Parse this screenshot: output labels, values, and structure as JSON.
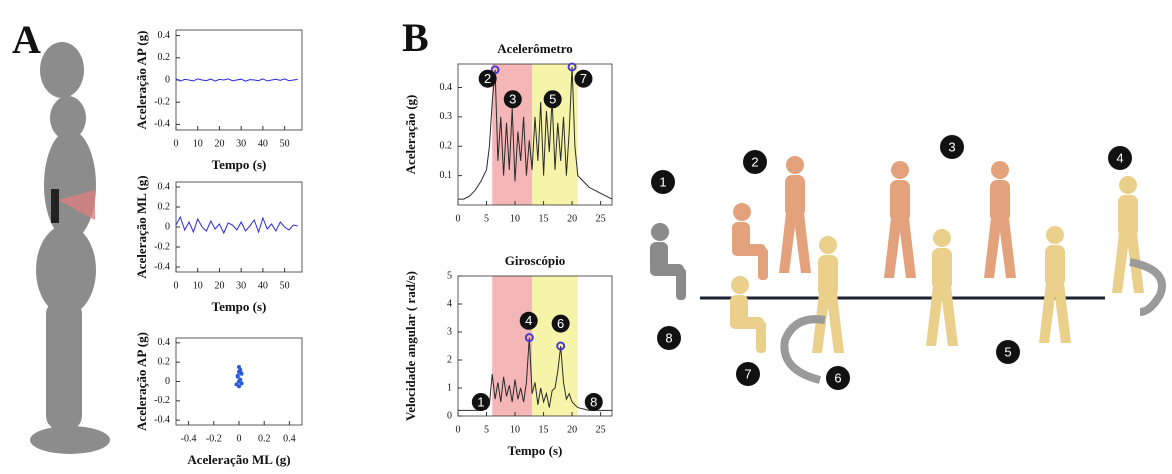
{
  "panel_labels": [
    "A",
    "B"
  ],
  "scene": {
    "steps": [
      "1",
      "2",
      "3",
      "4",
      "5",
      "6",
      "7",
      "8"
    ]
  },
  "chart_data": [
    {
      "type": "line",
      "ylabel": "Aceleração AP (g)",
      "xlabel": "Tempo (s)",
      "color": "#2a2adc",
      "x": [
        0,
        2,
        4,
        6,
        8,
        10,
        12,
        14,
        16,
        18,
        20,
        22,
        24,
        26,
        28,
        30,
        32,
        34,
        36,
        38,
        40,
        42,
        44,
        46,
        48,
        50,
        52,
        54,
        56
      ],
      "values": [
        0.01,
        -0.01,
        0.005,
        0,
        -0.008,
        0.01,
        0,
        -0.005,
        0.008,
        -0.01,
        0.005,
        0,
        0.01,
        -0.006,
        0,
        0.007,
        -0.01,
        0.004,
        0,
        -0.005,
        0.01,
        -0.008,
        0,
        0.006,
        -0.004,
        0.01,
        -0.006,
        0,
        0.005
      ],
      "xlim": [
        0,
        58
      ],
      "ylim": [
        -0.45,
        0.45
      ],
      "xticks": [
        0,
        10,
        20,
        30,
        40,
        50
      ],
      "yticks": [
        0.4,
        0.2,
        0,
        -0.2,
        -0.4
      ]
    },
    {
      "type": "line",
      "ylabel": "Aceleração ML (g)",
      "xlabel": "Tempo (s)",
      "color": "#2a2adc",
      "x": [
        0,
        2,
        4,
        6,
        8,
        10,
        12,
        14,
        16,
        18,
        20,
        22,
        24,
        26,
        28,
        30,
        32,
        34,
        36,
        38,
        40,
        42,
        44,
        46,
        48,
        50,
        52,
        54,
        56
      ],
      "values": [
        0.02,
        0.1,
        -0.03,
        0.05,
        -0.05,
        0.08,
        0,
        -0.04,
        0.06,
        -0.02,
        0.03,
        -0.06,
        0.04,
        0.02,
        -0.03,
        0.05,
        -0.04,
        0.01,
        0.07,
        -0.05,
        0.09,
        -0.02,
        0.03,
        -0.04,
        0.05,
        0,
        -0.03,
        0.02,
        0.01
      ],
      "xlim": [
        0,
        58
      ],
      "ylim": [
        -0.45,
        0.45
      ],
      "xticks": [
        0,
        10,
        20,
        30,
        40,
        50
      ],
      "yticks": [
        0.4,
        0.2,
        0,
        -0.2,
        -0.4
      ]
    },
    {
      "type": "scatter",
      "ylabel": "Aceleração AP (g)",
      "xlabel": "Aceleração ML (g)",
      "color": "#2a5adc",
      "x": [
        0,
        0.01,
        -0.01,
        0.02,
        0,
        -0.02,
        0.01,
        0,
        0.01,
        -0.01,
        0,
        0.02
      ],
      "values": [
        0.15,
        0.1,
        0.05,
        0.08,
        0,
        -0.03,
        0.12,
        -0.05,
        0.02,
        0.06,
        0.1,
        -0.02
      ],
      "xlim": [
        -0.5,
        0.5
      ],
      "ylim": [
        -0.45,
        0.45
      ],
      "xticks": [
        -0.4,
        -0.2,
        0,
        0.2,
        0.4
      ],
      "yticks": [
        0.4,
        0.2,
        0,
        -0.2,
        -0.4
      ]
    },
    {
      "type": "line",
      "title": "Acelerômetro",
      "ylabel": "Aceleração (g)",
      "color": "#2b2b2b",
      "x": [
        0,
        1,
        2,
        3,
        4,
        5,
        5.5,
        6,
        6.5,
        7,
        7.5,
        8,
        8.5,
        9,
        9.5,
        10,
        10.5,
        11,
        11.5,
        12,
        12.5,
        13,
        13.5,
        14,
        14.5,
        15,
        15.5,
        16,
        16.5,
        17,
        17.5,
        18,
        18.5,
        19,
        19.5,
        20,
        20.5,
        21,
        22,
        23,
        24,
        25,
        26,
        27
      ],
      "values": [
        0.02,
        0.02,
        0.03,
        0.05,
        0.08,
        0.12,
        0.2,
        0.35,
        0.46,
        0.15,
        0.3,
        0.1,
        0.28,
        0.12,
        0.33,
        0.08,
        0.25,
        0.15,
        0.3,
        0.1,
        0.22,
        0.12,
        0.3,
        0.15,
        0.35,
        0.1,
        0.32,
        0.18,
        0.36,
        0.12,
        0.28,
        0.15,
        0.3,
        0.1,
        0.25,
        0.47,
        0.2,
        0.1,
        0.08,
        0.06,
        0.05,
        0.04,
        0.03,
        0.02
      ],
      "xlim": [
        0,
        27
      ],
      "ylim": [
        0,
        0.48
      ],
      "xticks": [
        0,
        5,
        10,
        15,
        20,
        25
      ],
      "yticks": [
        0.1,
        0.2,
        0.3,
        0.4
      ],
      "phases": [
        {
          "start": 6,
          "end": 13,
          "color": "#f4b6b6"
        },
        {
          "start": 13,
          "end": 21,
          "color": "#f6f4a8"
        }
      ],
      "markers": {
        "x": [
          6.5,
          20
        ],
        "y": [
          0.46,
          0.47
        ],
        "color": "#4a3ad0"
      },
      "annotations": [
        {
          "label": "2",
          "x": 5.2,
          "y": 0.43
        },
        {
          "label": "3",
          "x": 9.6,
          "y": 0.36
        },
        {
          "label": "5",
          "x": 16.6,
          "y": 0.36
        },
        {
          "label": "7",
          "x": 22,
          "y": 0.43
        }
      ]
    },
    {
      "type": "line",
      "title": "Giroscópio",
      "ylabel": "Velocidade angular ( rad/s)",
      "xlabel": "Tempo (s)",
      "color": "#2b2b2b",
      "x": [
        0,
        1,
        2,
        3,
        4,
        5,
        5.5,
        6,
        6.5,
        7,
        7.5,
        8,
        8.5,
        9,
        9.5,
        10,
        10.5,
        11,
        11.5,
        12,
        12.5,
        13,
        13.5,
        14,
        14.5,
        15,
        15.5,
        16,
        16.5,
        17,
        17.5,
        18,
        18.5,
        19,
        19.5,
        20,
        20.5,
        21,
        22,
        23,
        24,
        25,
        26,
        27
      ],
      "values": [
        0.2,
        0.2,
        0.2,
        0.2,
        0.2,
        0.25,
        0.4,
        1.5,
        0.6,
        1.2,
        0.5,
        1.4,
        0.7,
        1.1,
        0.5,
        1.3,
        0.6,
        1.0,
        0.5,
        1.2,
        2.8,
        0.8,
        1.2,
        0.4,
        1.0,
        0.5,
        0.8,
        0.3,
        0.9,
        1.0,
        1.6,
        2.5,
        1.2,
        0.6,
        0.8,
        0.5,
        0.4,
        0.3,
        0.25,
        0.2,
        0.2,
        0.2,
        0.2,
        0.2
      ],
      "xlim": [
        0,
        27
      ],
      "ylim": [
        0,
        5
      ],
      "xticks": [
        0,
        5,
        10,
        15,
        20,
        25
      ],
      "yticks": [
        0,
        1,
        2,
        3,
        4,
        5
      ],
      "phases": [
        {
          "start": 6,
          "end": 13,
          "color": "#f4b6b6"
        },
        {
          "start": 13,
          "end": 21,
          "color": "#f6f4a8"
        }
      ],
      "markers": {
        "x": [
          12.5,
          18
        ],
        "y": [
          2.8,
          2.5
        ],
        "color": "#4a3ad0"
      },
      "annotations": [
        {
          "label": "1",
          "x": 4,
          "y": 0.5
        },
        {
          "label": "4",
          "x": 12.4,
          "y": 3.4
        },
        {
          "label": "6",
          "x": 18,
          "y": 3.3
        },
        {
          "label": "8",
          "x": 23.8,
          "y": 0.5
        }
      ]
    }
  ]
}
